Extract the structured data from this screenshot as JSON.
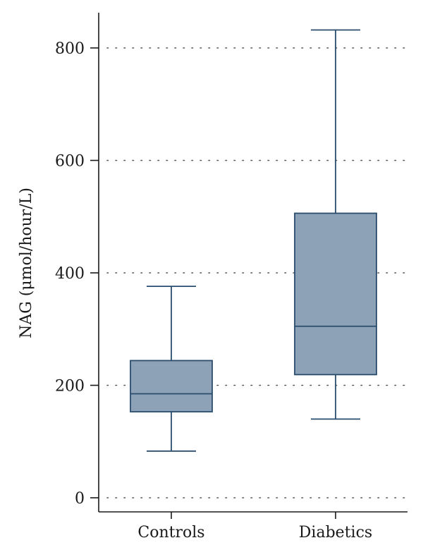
{
  "chart_data": {
    "type": "box",
    "title": "",
    "xlabel": "",
    "ylabel": "NAG (μmol/hour/L)",
    "ylim": [
      0,
      850
    ],
    "yticks": [
      0,
      200,
      400,
      600,
      800
    ],
    "ytick_labels": [
      "0",
      "200",
      "400",
      "600",
      "800"
    ],
    "grid": "horizontal dotted",
    "categories": [
      "Controls",
      "Diabetics"
    ],
    "boxes": [
      {
        "category": "Controls",
        "whisker_low": 83,
        "q1": 153,
        "median": 185,
        "q3": 244,
        "whisker_high": 376
      },
      {
        "category": "Diabetics",
        "whisker_low": 140,
        "q1": 219,
        "median": 305,
        "q3": 506,
        "whisker_high": 832
      }
    ],
    "colors": {
      "box_fill": "#8ea2b7",
      "box_stroke": "#2a4d6e",
      "axis": "#1a1a1a",
      "grid": "#555555"
    }
  }
}
